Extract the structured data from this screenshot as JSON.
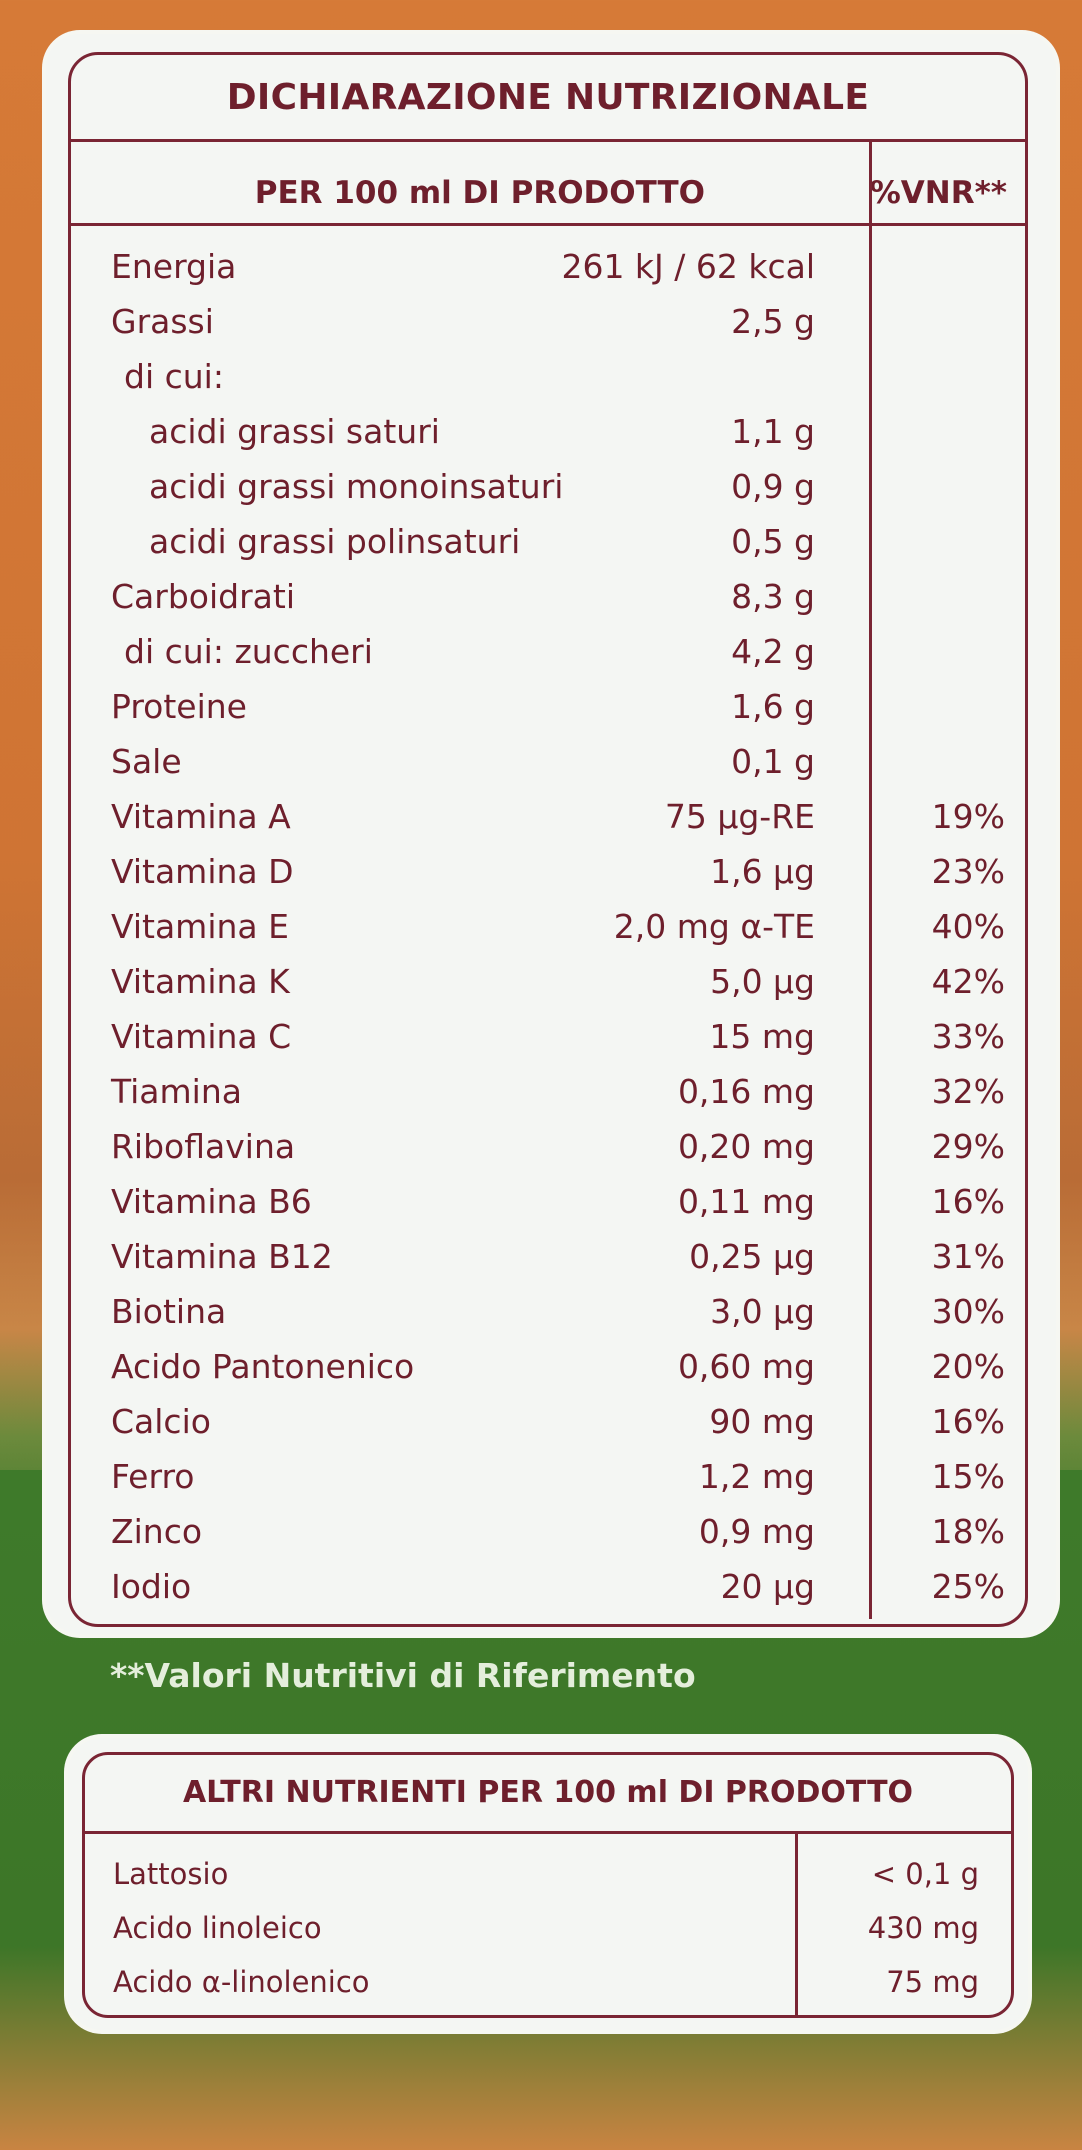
{
  "main_table": {
    "title": "DICHIARAZIONE NUTRIZIONALE",
    "col_per100": "PER 100 ml DI PRODOTTO",
    "col_vnr": "%VNR**",
    "rows": [
      {
        "name": "Energia",
        "value": "261 kJ / 62 kcal",
        "pct": ""
      },
      {
        "name": "Grassi",
        "value": "2,5 g",
        "pct": ""
      },
      {
        "name": "di cui:",
        "value": "",
        "pct": ""
      },
      {
        "name": "acidi grassi saturi",
        "value": "1,1 g",
        "pct": ""
      },
      {
        "name": "acidi grassi monoinsaturi",
        "value": "0,9 g",
        "pct": ""
      },
      {
        "name": "acidi grassi polinsaturi",
        "value": "0,5 g",
        "pct": ""
      },
      {
        "name": "Carboidrati",
        "value": "8,3 g",
        "pct": ""
      },
      {
        "name": "di cui: zuccheri",
        "value": "4,2 g",
        "pct": ""
      },
      {
        "name": "Proteine",
        "value": "1,6 g",
        "pct": ""
      },
      {
        "name": "Sale",
        "value": "0,1 g",
        "pct": ""
      },
      {
        "name": "Vitamina A",
        "value": "75 µg-RE",
        "pct": "19%"
      },
      {
        "name": "Vitamina D",
        "value": "1,6 µg",
        "pct": "23%"
      },
      {
        "name": "Vitamina E",
        "value": "2,0 mg α-TE",
        "pct": "40%"
      },
      {
        "name": "Vitamina K",
        "value": "5,0 µg",
        "pct": "42%"
      },
      {
        "name": "Vitamina C",
        "value": "15 mg",
        "pct": "33%"
      },
      {
        "name": "Tiamina",
        "value": "0,16 mg",
        "pct": "32%"
      },
      {
        "name": "Riboflavina",
        "value": "0,20 mg",
        "pct": "29%"
      },
      {
        "name": "Vitamina B6",
        "value": "0,11 mg",
        "pct": "16%"
      },
      {
        "name": "Vitamina B12",
        "value": "0,25 µg",
        "pct": "31%"
      },
      {
        "name": "Biotina",
        "value": "3,0 µg",
        "pct": "30%"
      },
      {
        "name": "Acido Pantonenico",
        "value": "0,60 mg",
        "pct": "20%"
      },
      {
        "name": "Calcio",
        "value": "90 mg",
        "pct": "16%"
      },
      {
        "name": "Ferro",
        "value": "1,2 mg",
        "pct": "15%"
      },
      {
        "name": "Zinco",
        "value": "0,9 mg",
        "pct": "18%"
      },
      {
        "name": "Iodio",
        "value": "20 µg",
        "pct": "25%"
      }
    ]
  },
  "footnote": "**Valori Nutritivi di Riferimento",
  "other_table": {
    "title": "ALTRI NUTRIENTI PER 100 ml DI PRODOTTO",
    "rows": [
      {
        "name": "Lattosio",
        "value": "< 0,1 g"
      },
      {
        "name": "Acido linoleico",
        "value": "430 mg"
      },
      {
        "name": "Acido α-linolenico",
        "value": "75 mg"
      }
    ]
  },
  "colors": {
    "ink": "#6e1f2c",
    "panel": "#f4f6f3",
    "orange_bg": "#d67a37",
    "green_band": "#3f7a2c"
  }
}
